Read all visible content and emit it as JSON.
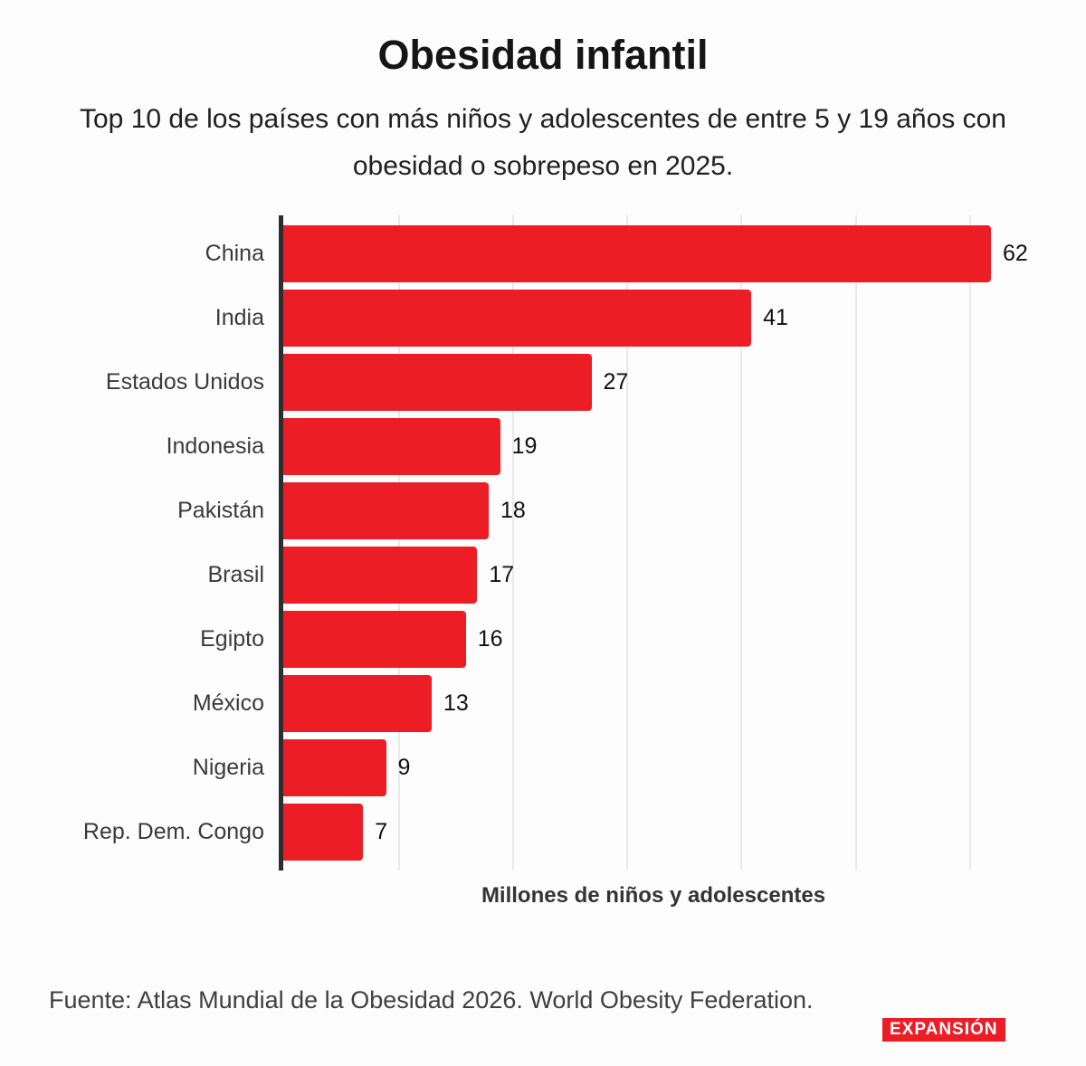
{
  "header": {
    "title": "Obesidad infantil",
    "subtitle": "Top 10 de los países con más niños y adolescentes de entre 5 y 19 años con obesidad o sobrepeso en 2025."
  },
  "chart_data": {
    "type": "bar",
    "orientation": "horizontal",
    "title": "Obesidad infantil",
    "categories": [
      "China",
      "India",
      "Estados Unidos",
      "Indonesia",
      "Pakistán",
      "Brasil",
      "Egipto",
      "México",
      "Nigeria",
      "Rep. Dem. Congo"
    ],
    "values": [
      62,
      41,
      27,
      19,
      18,
      17,
      16,
      13,
      9,
      7
    ],
    "xlabel": "Millones de niños y adolescentes",
    "ylabel": "",
    "xlim": [
      0,
      64.7
    ],
    "gridlines": [
      10,
      20,
      30,
      40,
      50,
      60
    ],
    "grid": true,
    "legend": "none",
    "bar_color": "#EC1D25",
    "grid_color": "#e9e9e9",
    "value_labels": true
  },
  "footer": {
    "source": "Fuente: Atlas Mundial de la Obesidad 2026. World Obesity Federation.",
    "logo_text": "EXPANSIÓN",
    "logo_bg": "#EC1D25"
  }
}
